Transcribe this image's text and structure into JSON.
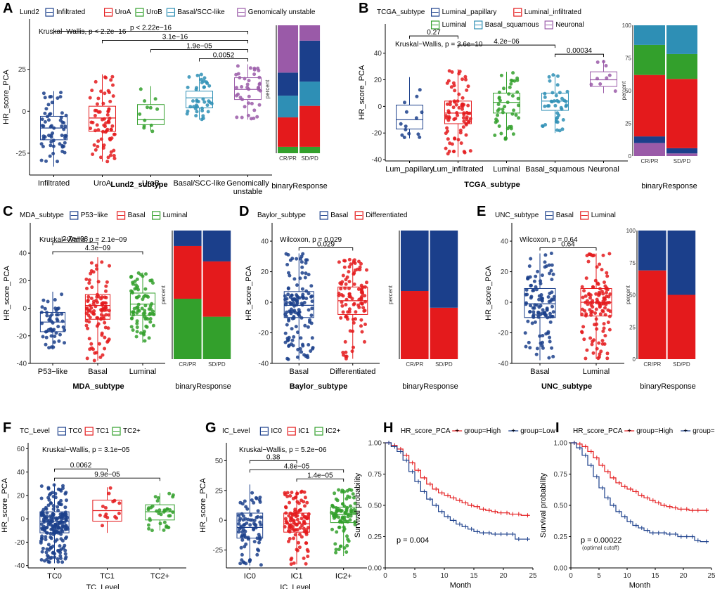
{
  "colors": {
    "navy": "#1b3f8b",
    "red": "#e41a1c",
    "green": "#33a02c",
    "teal": "#2e8fb5",
    "purple": "#9a5aa8"
  },
  "chart_data": [
    {
      "panel": "A",
      "type": "box",
      "legend_title": "Lund2",
      "groups": [
        "Infiltrated",
        "UroA",
        "UroB",
        "Basal/SCC-like",
        "Genomically unstable"
      ],
      "tick_labels": [
        "Infiltrated",
        "UroA",
        "UroB",
        "Basal/SCC-like",
        "Genomically\nunstable"
      ],
      "group_colors": [
        "navy",
        "red",
        "green",
        "teal",
        "purple"
      ],
      "medians": [
        -10,
        -4,
        -5,
        8,
        13
      ],
      "q1": [
        -17,
        -12,
        -8,
        2,
        7
      ],
      "q3": [
        -3,
        3,
        4,
        12,
        20
      ],
      "whisker_low": [
        -33,
        -30,
        -12,
        -5,
        -5
      ],
      "whisker_high": [
        12,
        22,
        15,
        22,
        28
      ],
      "n_points": [
        60,
        70,
        12,
        40,
        40
      ],
      "ylim": [
        -38,
        55
      ],
      "yticks": [
        -25,
        0,
        25
      ],
      "xlabel": "Lund2_subtype",
      "ylabel": "HR_score_PCA",
      "test": "Kruskal−Wallis, p < 2.2e−16",
      "brackets": [
        {
          "from": 3,
          "to": 4,
          "label": "0.0052"
        },
        {
          "from": 2,
          "to": 4,
          "label": "1.9e−05"
        },
        {
          "from": 1,
          "to": 4,
          "label": "3.1e−16"
        },
        {
          "from": 0,
          "to": 4,
          "label": "p < 2.22e−16"
        }
      ],
      "stack": {
        "categories": [
          "CR/PR",
          "SD/PD"
        ],
        "colors": [
          "green",
          "red",
          "teal",
          "navy",
          "purple"
        ],
        "values": [
          [
            5,
            23,
            17,
            18,
            37
          ],
          [
            5,
            32,
            19,
            32,
            12
          ]
        ],
        "xlabel": "binaryResponse",
        "ylabel": "percent",
        "show_ticks": false
      }
    },
    {
      "panel": "B",
      "type": "box",
      "legend_title": "TCGA_subtype",
      "legend_items": [
        "Luminal_papillary",
        "Luminal_infiltrated",
        "Luminal",
        "Basal_squamous",
        "Neuronal"
      ],
      "groups": [
        "Lum_papillary",
        "Lum_infiltrated",
        "Luminal",
        "Basal_squamous",
        "Neuronal"
      ],
      "tick_labels": [
        "Lum_papillary",
        "Lum_infiltrated",
        "Luminal",
        "Basal_squamous",
        "Neuronal"
      ],
      "group_colors": [
        "navy",
        "red",
        "green",
        "teal",
        "purple"
      ],
      "medians": [
        -10,
        -5,
        3,
        4,
        20
      ],
      "q1": [
        -17,
        -13,
        -5,
        -3,
        15
      ],
      "q3": [
        1,
        4,
        10,
        10,
        26
      ],
      "whisker_low": [
        -24,
        -38,
        -25,
        -20,
        10
      ],
      "whisker_high": [
        22,
        28,
        26,
        24,
        35
      ],
      "n_points": [
        14,
        80,
        45,
        40,
        9
      ],
      "ylim": [
        -41,
        62
      ],
      "yticks": [
        -40,
        -20,
        0,
        20,
        40
      ],
      "xlabel": "TCGA_subtype",
      "ylabel": "HR_score_PCA",
      "test": "Kruskal−Wallis, p = 3.6e−10",
      "brackets": [
        {
          "from": 3,
          "to": 4,
          "label": "0.00034"
        },
        {
          "from": 1,
          "to": 3,
          "label": "4.2e−06"
        },
        {
          "from": 0,
          "to": 1,
          "label": "0.27"
        }
      ],
      "stack": {
        "categories": [
          "CR/PR",
          "SD/PD"
        ],
        "colors": [
          "purple",
          "navy",
          "red",
          "green",
          "teal"
        ],
        "values": [
          [
            10,
            5,
            47,
            23,
            15
          ],
          [
            2,
            4,
            53,
            19,
            22
          ]
        ],
        "xlabel": "binaryResponse",
        "ylabel": "percent",
        "show_ticks": true,
        "yticks": [
          0,
          25,
          50,
          75,
          100
        ]
      }
    },
    {
      "panel": "C",
      "type": "box",
      "legend_title": "MDA_subtype",
      "groups": [
        "P53−like",
        "Basal",
        "Luminal"
      ],
      "tick_labels": [
        "P53−like",
        "Basal",
        "Luminal"
      ],
      "group_colors": [
        "navy",
        "red",
        "green"
      ],
      "medians": [
        -10,
        2,
        3
      ],
      "q1": [
        -17,
        -8,
        -5
      ],
      "q3": [
        -3,
        10,
        11
      ],
      "whisker_low": [
        -30,
        -38,
        -25
      ],
      "whisker_high": [
        12,
        37,
        26
      ],
      "n_points": [
        50,
        100,
        80
      ],
      "ylim": [
        -40,
        62
      ],
      "yticks": [
        -40,
        -20,
        0,
        20,
        40
      ],
      "xlabel": "MDA_subtype",
      "ylabel": "HR_score_PCA",
      "test": "Kruskal−Wallis, p = 2.1e−09",
      "brackets": [
        {
          "from": 0,
          "to": 2,
          "label": "4.3e−09"
        },
        {
          "from": 0,
          "to": 1,
          "label": "2.7e−08"
        }
      ],
      "stack": {
        "categories": [
          "CR/PR",
          "SD/PD"
        ],
        "colors": [
          "green",
          "red",
          "navy"
        ],
        "values": [
          [
            47,
            41,
            12
          ],
          [
            33,
            43,
            24
          ]
        ],
        "xlabel": "binaryResponse",
        "ylabel": "percent",
        "show_ticks": false
      }
    },
    {
      "panel": "D",
      "type": "box",
      "legend_title": "Baylor_subtype",
      "groups": [
        "Basal",
        "Differentiated"
      ],
      "tick_labels": [
        "Basal",
        "Differentiated"
      ],
      "group_colors": [
        "navy",
        "red"
      ],
      "medians": [
        -2,
        1
      ],
      "q1": [
        -10,
        -8
      ],
      "q3": [
        7,
        10
      ],
      "whisker_low": [
        -38,
        -37
      ],
      "whisker_high": [
        32,
        28
      ],
      "n_points": [
        130,
        100
      ],
      "ylim": [
        -40,
        52
      ],
      "yticks": [
        -40,
        -20,
        0,
        20,
        40
      ],
      "xlabel": "Baylor_subtype",
      "ylabel": "HR_score_PCA",
      "test": "Wilcoxon, p = 0.029",
      "brackets": [
        {
          "from": 0,
          "to": 1,
          "label": "0.029"
        }
      ],
      "stack": {
        "categories": [
          "CR/PR",
          "SD/PD"
        ],
        "colors": [
          "red",
          "navy"
        ],
        "values": [
          [
            53,
            47
          ],
          [
            40,
            60
          ]
        ],
        "xlabel": "binaryResponse",
        "ylabel": "percent",
        "show_ticks": false
      }
    },
    {
      "panel": "E",
      "type": "box",
      "legend_title": "UNC_subtype",
      "groups": [
        "Basal",
        "Luminal"
      ],
      "tick_labels": [
        "Basal",
        "Luminal"
      ],
      "group_colors": [
        "navy",
        "red"
      ],
      "medians": [
        -1,
        0
      ],
      "q1": [
        -10,
        -9
      ],
      "q3": [
        9,
        9
      ],
      "whisker_low": [
        -38,
        -37
      ],
      "whisker_high": [
        32,
        32
      ],
      "n_points": [
        110,
        120
      ],
      "ylim": [
        -40,
        52
      ],
      "yticks": [
        -40,
        -20,
        0,
        20,
        40
      ],
      "xlabel": "UNC_subtype",
      "ylabel": "HR_score_PCA",
      "test": "Wilcoxon, p = 0.64",
      "brackets": [
        {
          "from": 0,
          "to": 1,
          "label": "0.64"
        }
      ],
      "stack": {
        "categories": [
          "CR/PR",
          "SD/PD"
        ],
        "colors": [
          "red",
          "navy"
        ],
        "values": [
          [
            69,
            31
          ],
          [
            50,
            50
          ]
        ],
        "xlabel": "binaryResponse",
        "ylabel": "percent",
        "show_ticks": true,
        "yticks": [
          0,
          25,
          50,
          75,
          100
        ]
      }
    },
    {
      "panel": "F",
      "type": "box",
      "legend_title": "TC_Level",
      "groups": [
        "TC0",
        "TC1",
        "TC2+"
      ],
      "tick_labels": [
        "TC0",
        "TC1",
        "TC2+"
      ],
      "group_colors": [
        "navy",
        "red",
        "green"
      ],
      "medians": [
        -2,
        7,
        6
      ],
      "q1": [
        -12,
        -2,
        -1
      ],
      "q3": [
        6,
        16,
        12
      ],
      "whisker_low": [
        -38,
        -12,
        -10
      ],
      "whisker_high": [
        30,
        27,
        22
      ],
      "n_points": [
        200,
        15,
        35
      ],
      "ylim": [
        -42,
        65
      ],
      "yticks": [
        -40,
        -20,
        0,
        20,
        40,
        60
      ],
      "xlabel": "TC_Level",
      "ylabel": "HR_score_PCA",
      "test": "Kruskal−Wallis, p = 3.1e−05",
      "brackets": [
        {
          "from": 0,
          "to": 2,
          "label": "9.9e−05"
        },
        {
          "from": 0,
          "to": 1,
          "label": "0.0062"
        }
      ]
    },
    {
      "panel": "G",
      "type": "box",
      "legend_title": "IC_Level",
      "groups": [
        "IC0",
        "IC1",
        "IC2+"
      ],
      "tick_labels": [
        "IC0",
        "IC1",
        "IC2+"
      ],
      "group_colors": [
        "navy",
        "red",
        "green"
      ],
      "medians": [
        -6,
        -3,
        5
      ],
      "q1": [
        -15,
        -10,
        -2
      ],
      "q3": [
        6,
        6,
        11
      ],
      "whisker_low": [
        -38,
        -37,
        -30
      ],
      "whisker_high": [
        30,
        25,
        26
      ],
      "n_points": [
        80,
        110,
        90
      ],
      "ylim": [
        -40,
        65
      ],
      "yticks": [
        -25,
        0,
        25,
        50
      ],
      "xlabel": "IC_Level",
      "ylabel": "HR_score_PCA",
      "test": "Kruskal−Wallis, p = 5.2e−06",
      "brackets": [
        {
          "from": 1,
          "to": 2,
          "label": "1.4e−05"
        },
        {
          "from": 0,
          "to": 2,
          "label": "4.8e−05"
        },
        {
          "from": 0,
          "to": 1,
          "label": "0.38"
        }
      ]
    },
    {
      "panel": "H",
      "type": "line",
      "legend_title": "HR_score_PCA",
      "series": [
        {
          "name": "group=High",
          "color": "red",
          "x": [
            0,
            1,
            2,
            3,
            4,
            5,
            6,
            7,
            8,
            9,
            10,
            11,
            12,
            13,
            14,
            15,
            16,
            17,
            18,
            19,
            20,
            21,
            22,
            23,
            24.5
          ],
          "y": [
            1.0,
            0.98,
            0.95,
            0.9,
            0.84,
            0.78,
            0.72,
            0.67,
            0.63,
            0.6,
            0.58,
            0.56,
            0.54,
            0.52,
            0.5,
            0.49,
            0.47,
            0.46,
            0.45,
            0.44,
            0.44,
            0.43,
            0.43,
            0.42,
            0.42
          ]
        },
        {
          "name": "group=Low",
          "color": "navy",
          "x": [
            0,
            1,
            2,
            3,
            4,
            5,
            6,
            7,
            8,
            9,
            10,
            11,
            12,
            13,
            14,
            15,
            16,
            17,
            18,
            19,
            20,
            21,
            22,
            23,
            24.5
          ],
          "y": [
            1.0,
            0.97,
            0.93,
            0.86,
            0.77,
            0.69,
            0.61,
            0.55,
            0.5,
            0.45,
            0.41,
            0.38,
            0.35,
            0.33,
            0.31,
            0.29,
            0.28,
            0.28,
            0.27,
            0.27,
            0.27,
            0.27,
            0.23,
            0.23,
            0.23
          ]
        }
      ],
      "xlim": [
        0,
        25
      ],
      "ylim": [
        0,
        1
      ],
      "xticks": [
        0,
        5,
        10,
        15,
        20,
        25
      ],
      "yticks": [
        0.0,
        0.25,
        0.5,
        0.75,
        1.0
      ],
      "ytick_labels": [
        "0.00",
        "0.25",
        "0.50",
        "0.75",
        "1.00"
      ],
      "xlabel": "Month",
      "ylabel": "Survival probability",
      "annotation": "p = 0.004"
    },
    {
      "panel": "I",
      "type": "line",
      "legend_title": "HR_score_PCA",
      "series": [
        {
          "name": "group=High",
          "color": "red",
          "x": [
            0,
            1,
            2,
            3,
            4,
            5,
            6,
            7,
            8,
            9,
            10,
            11,
            12,
            13,
            14,
            15,
            16,
            17,
            18,
            19,
            20,
            21,
            22,
            23,
            24.5
          ],
          "y": [
            1.0,
            0.99,
            0.97,
            0.93,
            0.88,
            0.82,
            0.77,
            0.72,
            0.68,
            0.65,
            0.63,
            0.61,
            0.58,
            0.56,
            0.54,
            0.52,
            0.5,
            0.49,
            0.48,
            0.47,
            0.47,
            0.46,
            0.46,
            0.46,
            0.46
          ]
        },
        {
          "name": "group=Low",
          "color": "navy",
          "x": [
            0,
            1,
            2,
            3,
            4,
            5,
            6,
            7,
            8,
            9,
            10,
            11,
            12,
            13,
            14,
            15,
            16,
            17,
            18,
            19,
            20,
            21,
            22,
            23,
            24.5
          ],
          "y": [
            1.0,
            0.96,
            0.9,
            0.82,
            0.73,
            0.64,
            0.56,
            0.5,
            0.45,
            0.41,
            0.37,
            0.34,
            0.32,
            0.3,
            0.28,
            0.28,
            0.28,
            0.27,
            0.27,
            0.25,
            0.25,
            0.25,
            0.22,
            0.21,
            0.21
          ]
        }
      ],
      "xlim": [
        0,
        25
      ],
      "ylim": [
        0,
        1
      ],
      "xticks": [
        0,
        5,
        10,
        15,
        20,
        25
      ],
      "yticks": [
        0.0,
        0.25,
        0.5,
        0.75,
        1.0
      ],
      "ytick_labels": [
        "0.00",
        "0.25",
        "0.50",
        "0.75",
        "1.00"
      ],
      "xlabel": "Month",
      "ylabel": "Survival probability",
      "annotation": "p = 0.00022",
      "annotation_sub": "(optimal cutoff)"
    }
  ]
}
